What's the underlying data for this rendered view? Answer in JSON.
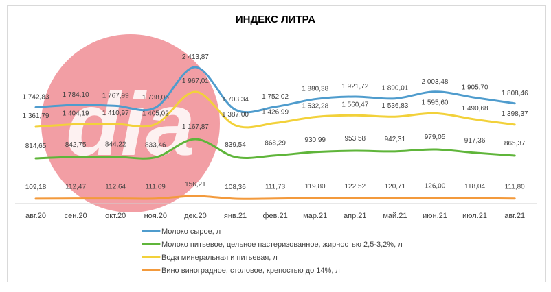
{
  "chart_data": {
    "type": "line",
    "title": "ИНДЕКС ЛИТРА",
    "categories": [
      "авг.20",
      "сен.20",
      "окт.20",
      "ноя.20",
      "дек.20",
      "янв.21",
      "фев.21",
      "мар.21",
      "апр.21",
      "май.21",
      "июн.21",
      "июл.21",
      "авг.21"
    ],
    "series": [
      {
        "name": "Молоко сырое, л",
        "color": "#4f9ccd",
        "values": [
          1742.83,
          1784.1,
          1767.99,
          1738.06,
          2413.87,
          1703.34,
          1752.02,
          1880.38,
          1921.72,
          1890.01,
          2003.48,
          1905.7,
          1808.46
        ],
        "labels": [
          "1 742,83",
          "1 784,10",
          "1 767,99",
          "1 738,06",
          "2 413,87",
          "1 703,34",
          "1 752,02",
          "1 880,38",
          "1 921,72",
          "1 890,01",
          "2 003,48",
          "1 905,70",
          "1 808,46"
        ]
      },
      {
        "name": "Молоко питьевое, цельное пастеризованное, жирностью 2,5-3,2%, л",
        "color": "#5fb53a",
        "values": [
          814.65,
          842.75,
          844.22,
          833.46,
          1167.87,
          839.54,
          868.29,
          930.99,
          953.58,
          942.31,
          979.05,
          917.36,
          865.37
        ],
        "labels": [
          "814,65",
          "842,75",
          "844,22",
          "833,46",
          "1 167,87",
          "839,54",
          "868,29",
          "930,99",
          "953,58",
          "942,31",
          "979,05",
          "917,36",
          "865,37"
        ]
      },
      {
        "name": "Вода минеральная и питьевая, л",
        "color": "#f2d13a",
        "values": [
          1361.79,
          1404.19,
          1410.97,
          1405.02,
          1967.01,
          1387.0,
          1426.99,
          1532.28,
          1560.47,
          1536.83,
          1595.6,
          1490.68,
          1398.37
        ],
        "labels": [
          "1 361,79",
          "1 404,19",
          "1 410,97",
          "1 405,02",
          "1 967,01",
          "1 387,00",
          "1 426,99",
          "1 532,28",
          "1 560,47",
          "1 536,83",
          "1 595,60",
          "1 490,68",
          "1 398,37"
        ]
      },
      {
        "name": "Вино виноградное, столовое, крепостью до 14%, л",
        "color": "#f39a3c",
        "values": [
          109.18,
          112.47,
          112.64,
          111.69,
          156.21,
          108.36,
          111.73,
          119.8,
          122.52,
          120.71,
          126.0,
          118.04,
          111.8
        ],
        "labels": [
          "109,18",
          "112,47",
          "112,64",
          "111,69",
          "156,21",
          "108,36",
          "111,73",
          "119,80",
          "122,52",
          "120,71",
          "126,00",
          "118,04",
          "111,80"
        ]
      }
    ],
    "grid": false,
    "legend_position": "bottom",
    "watermark": "dia"
  }
}
